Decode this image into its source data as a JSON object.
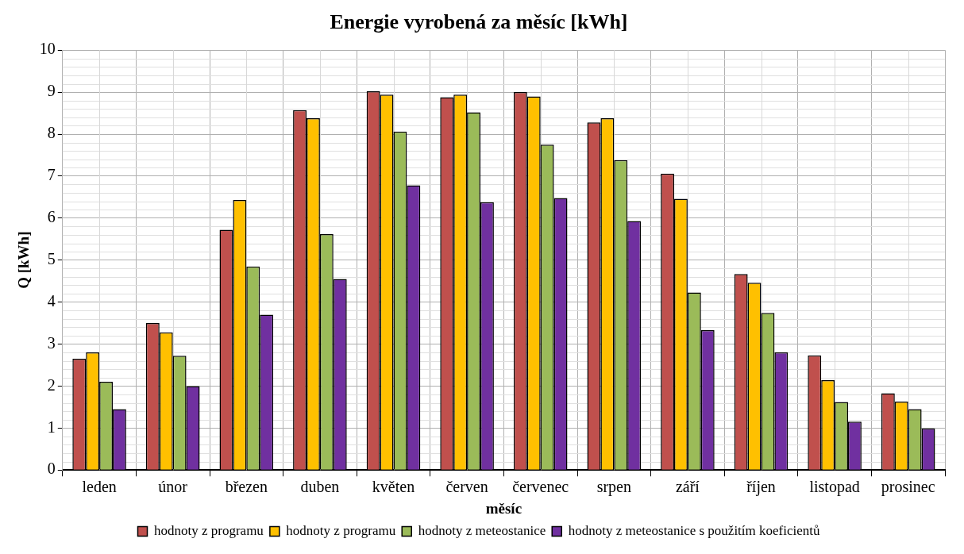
{
  "chart_data": {
    "type": "bar",
    "title": "Energie vyrobená za měsíc [kWh]",
    "xlabel": "měsíc",
    "ylabel": "Q [kWh]",
    "categories": [
      "leden",
      "únor",
      "březen",
      "duben",
      "květen",
      "červen",
      "červenec",
      "srpen",
      "září",
      "říjen",
      "listopad",
      "prosinec"
    ],
    "series": [
      {
        "name": "hodnoty z programu",
        "color": "#c0504d",
        "values": [
          2.65,
          3.5,
          5.72,
          8.57,
          9.02,
          8.88,
          9.0,
          8.28,
          7.06,
          4.67,
          2.73,
          1.83
        ]
      },
      {
        "name": "hodnoty z programu",
        "color": "#ffc000",
        "values": [
          2.8,
          3.28,
          6.43,
          8.38,
          8.94,
          8.94,
          8.9,
          8.38,
          6.46,
          4.46,
          2.14,
          1.63
        ]
      },
      {
        "name": "hodnoty z meteostanice",
        "color": "#9bbb59",
        "values": [
          2.1,
          2.72,
          4.85,
          5.62,
          8.06,
          8.52,
          7.75,
          7.38,
          4.23,
          3.74,
          1.62,
          1.45
        ]
      },
      {
        "name": "hodnoty z meteostanice s použitím koeficientů",
        "color": "#7030a0",
        "values": [
          1.45,
          2.0,
          3.7,
          4.55,
          6.78,
          6.38,
          6.48,
          5.93,
          3.33,
          2.8,
          1.15,
          0.99
        ]
      }
    ],
    "ylim": [
      0,
      10
    ],
    "yticks": [
      0,
      1,
      2,
      3,
      4,
      5,
      6,
      7,
      8,
      9,
      10
    ],
    "grid": true,
    "legend": "bottom"
  }
}
